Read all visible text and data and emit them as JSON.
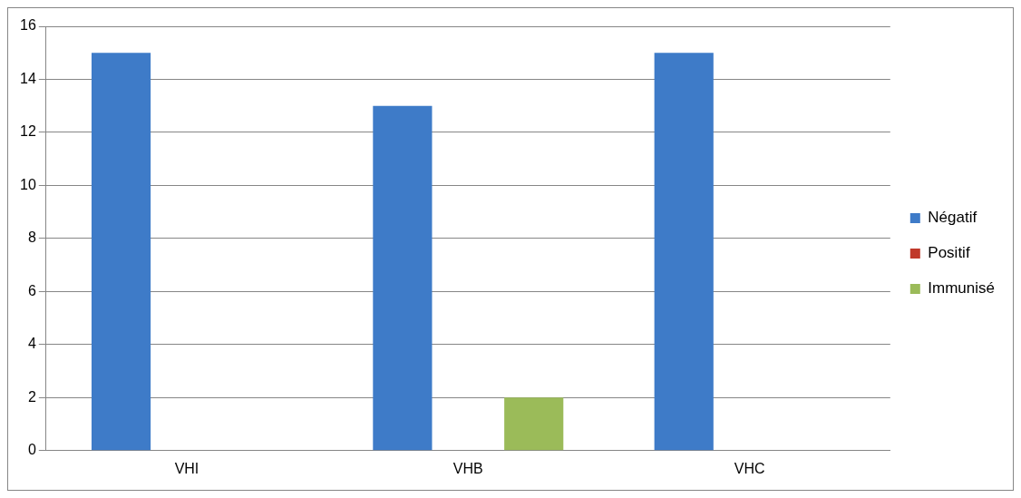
{
  "chart_data": {
    "type": "bar",
    "categories": [
      "VHI",
      "VHB",
      "VHC"
    ],
    "series": [
      {
        "name": "Négatif",
        "color": "#3e7bc8",
        "values": [
          15,
          13,
          15
        ]
      },
      {
        "name": "Positif",
        "color": "#c0392b",
        "values": [
          0,
          0,
          0
        ]
      },
      {
        "name": "Immunisé",
        "color": "#9bbb59",
        "values": [
          0,
          2,
          0
        ]
      }
    ],
    "ylim": [
      0,
      16
    ],
    "yticks": [
      0,
      2,
      4,
      6,
      8,
      10,
      12,
      14,
      16
    ],
    "grid": "y",
    "legend": "right"
  }
}
